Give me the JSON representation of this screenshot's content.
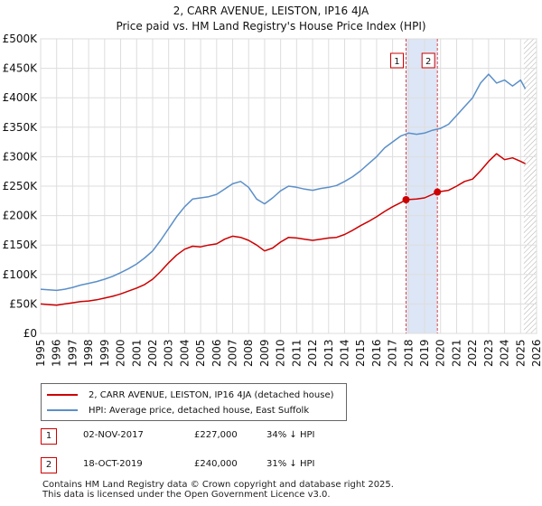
{
  "chart_data": {
    "type": "line",
    "title": "2, CARR AVENUE, LEISTON, IP16 4JA",
    "subtitle": "Price paid vs. HM Land Registry's House Price Index (HPI)",
    "xlabel": "",
    "ylabel": "",
    "xlim": [
      1995,
      2026
    ],
    "ylim": [
      0,
      500000
    ],
    "x_ticks": [
      "1995",
      "1996",
      "1997",
      "1998",
      "1999",
      "2000",
      "2001",
      "2002",
      "2003",
      "2004",
      "2005",
      "2006",
      "2007",
      "2008",
      "2009",
      "2010",
      "2011",
      "2012",
      "2013",
      "2014",
      "2015",
      "2016",
      "2017",
      "2018",
      "2019",
      "2020",
      "2021",
      "2022",
      "2023",
      "2024",
      "2025",
      "2026"
    ],
    "y_ticks": [
      {
        "value": 0,
        "label": "£0"
      },
      {
        "value": 50000,
        "label": "£50K"
      },
      {
        "value": 100000,
        "label": "£100K"
      },
      {
        "value": 150000,
        "label": "£150K"
      },
      {
        "value": 200000,
        "label": "£200K"
      },
      {
        "value": 250000,
        "label": "£250K"
      },
      {
        "value": 300000,
        "label": "£300K"
      },
      {
        "value": 350000,
        "label": "£350K"
      },
      {
        "value": 400000,
        "label": "£400K"
      },
      {
        "value": 450000,
        "label": "£450K"
      },
      {
        "value": 500000,
        "label": "£500K"
      }
    ],
    "grid": true,
    "series": [
      {
        "name": "2, CARR AVENUE, LEISTON, IP16 4JA (detached house)",
        "color": "#cc0000",
        "x": [
          1995.0,
          1995.5,
          1996.0,
          1996.5,
          1997.0,
          1997.5,
          1998.0,
          1998.5,
          1999.0,
          1999.5,
          2000.0,
          2000.5,
          2001.0,
          2001.5,
          2002.0,
          2002.5,
          2003.0,
          2003.5,
          2004.0,
          2004.5,
          2005.0,
          2005.5,
          2006.0,
          2006.5,
          2007.0,
          2007.5,
          2008.0,
          2008.5,
          2009.0,
          2009.5,
          2010.0,
          2010.5,
          2011.0,
          2011.5,
          2012.0,
          2012.5,
          2013.0,
          2013.5,
          2014.0,
          2014.5,
          2015.0,
          2015.5,
          2016.0,
          2016.5,
          2017.0,
          2017.5,
          2017.84,
          2018.5,
          2019.0,
          2019.5,
          2019.8,
          2020.5,
          2021.0,
          2021.5,
          2022.0,
          2022.5,
          2023.0,
          2023.5,
          2024.0,
          2024.5,
          2025.0,
          2025.3
        ],
        "y": [
          50000,
          49000,
          48000,
          50000,
          52000,
          54000,
          55000,
          57000,
          60000,
          63000,
          67000,
          72000,
          77000,
          83000,
          92000,
          105000,
          120000,
          133000,
          143000,
          148000,
          147000,
          150000,
          152000,
          160000,
          165000,
          163000,
          158000,
          150000,
          140000,
          145000,
          155000,
          163000,
          162000,
          160000,
          158000,
          160000,
          162000,
          163000,
          168000,
          175000,
          183000,
          190000,
          198000,
          207000,
          215000,
          222000,
          227000,
          228000,
          230000,
          236000,
          240000,
          243000,
          250000,
          258000,
          262000,
          276000,
          292000,
          305000,
          295000,
          298000,
          292000,
          288000
        ]
      },
      {
        "name": "HPI: Average price, detached house, East Suffolk",
        "color": "#5b8fc8",
        "x": [
          1995.0,
          1995.5,
          1996.0,
          1996.5,
          1997.0,
          1997.5,
          1998.0,
          1998.5,
          1999.0,
          1999.5,
          2000.0,
          2000.5,
          2001.0,
          2001.5,
          2002.0,
          2002.5,
          2003.0,
          2003.5,
          2004.0,
          2004.5,
          2005.0,
          2005.5,
          2006.0,
          2006.5,
          2007.0,
          2007.5,
          2008.0,
          2008.5,
          2009.0,
          2009.5,
          2010.0,
          2010.5,
          2011.0,
          2011.5,
          2012.0,
          2012.5,
          2013.0,
          2013.5,
          2014.0,
          2014.5,
          2015.0,
          2015.5,
          2016.0,
          2016.5,
          2017.0,
          2017.5,
          2018.0,
          2018.5,
          2019.0,
          2019.5,
          2020.0,
          2020.5,
          2021.0,
          2021.5,
          2022.0,
          2022.5,
          2023.0,
          2023.5,
          2024.0,
          2024.5,
          2025.0,
          2025.3
        ],
        "y": [
          75000,
          74000,
          73000,
          75000,
          78000,
          82000,
          85000,
          88000,
          92000,
          97000,
          103000,
          110000,
          118000,
          128000,
          140000,
          158000,
          178000,
          198000,
          215000,
          228000,
          230000,
          232000,
          236000,
          245000,
          254000,
          258000,
          248000,
          228000,
          220000,
          230000,
          242000,
          250000,
          248000,
          245000,
          243000,
          246000,
          248000,
          251000,
          258000,
          266000,
          276000,
          288000,
          300000,
          315000,
          325000,
          335000,
          340000,
          338000,
          340000,
          345000,
          348000,
          355000,
          370000,
          385000,
          400000,
          425000,
          440000,
          425000,
          430000,
          420000,
          430000,
          415000
        ]
      }
    ],
    "transactions": [
      {
        "label": "1",
        "x": 2017.84,
        "y": 227000,
        "date": "02-NOV-2017",
        "price": "£227,000",
        "delta": "34% ↓ HPI"
      },
      {
        "label": "2",
        "x": 2019.8,
        "y": 240000,
        "date": "18-OCT-2019",
        "price": "£240,000",
        "delta": "31% ↓ HPI"
      }
    ],
    "shaded_range": [
      2017.84,
      2019.8
    ],
    "forecast_start": 2025.2
  },
  "legend": {
    "property": "2, CARR AVENUE, LEISTON, IP16 4JA (detached house)",
    "hpi": "HPI: Average price, detached house, East Suffolk"
  },
  "footer": {
    "line1": "Contains HM Land Registry data © Crown copyright and database right 2025.",
    "line2": "This data is licensed under the Open Government Licence v3.0."
  },
  "colors": {
    "property": "#cc0000",
    "hpi": "#5b8fc8",
    "shade": "#dde6f6",
    "grid": "#dddddd"
  }
}
